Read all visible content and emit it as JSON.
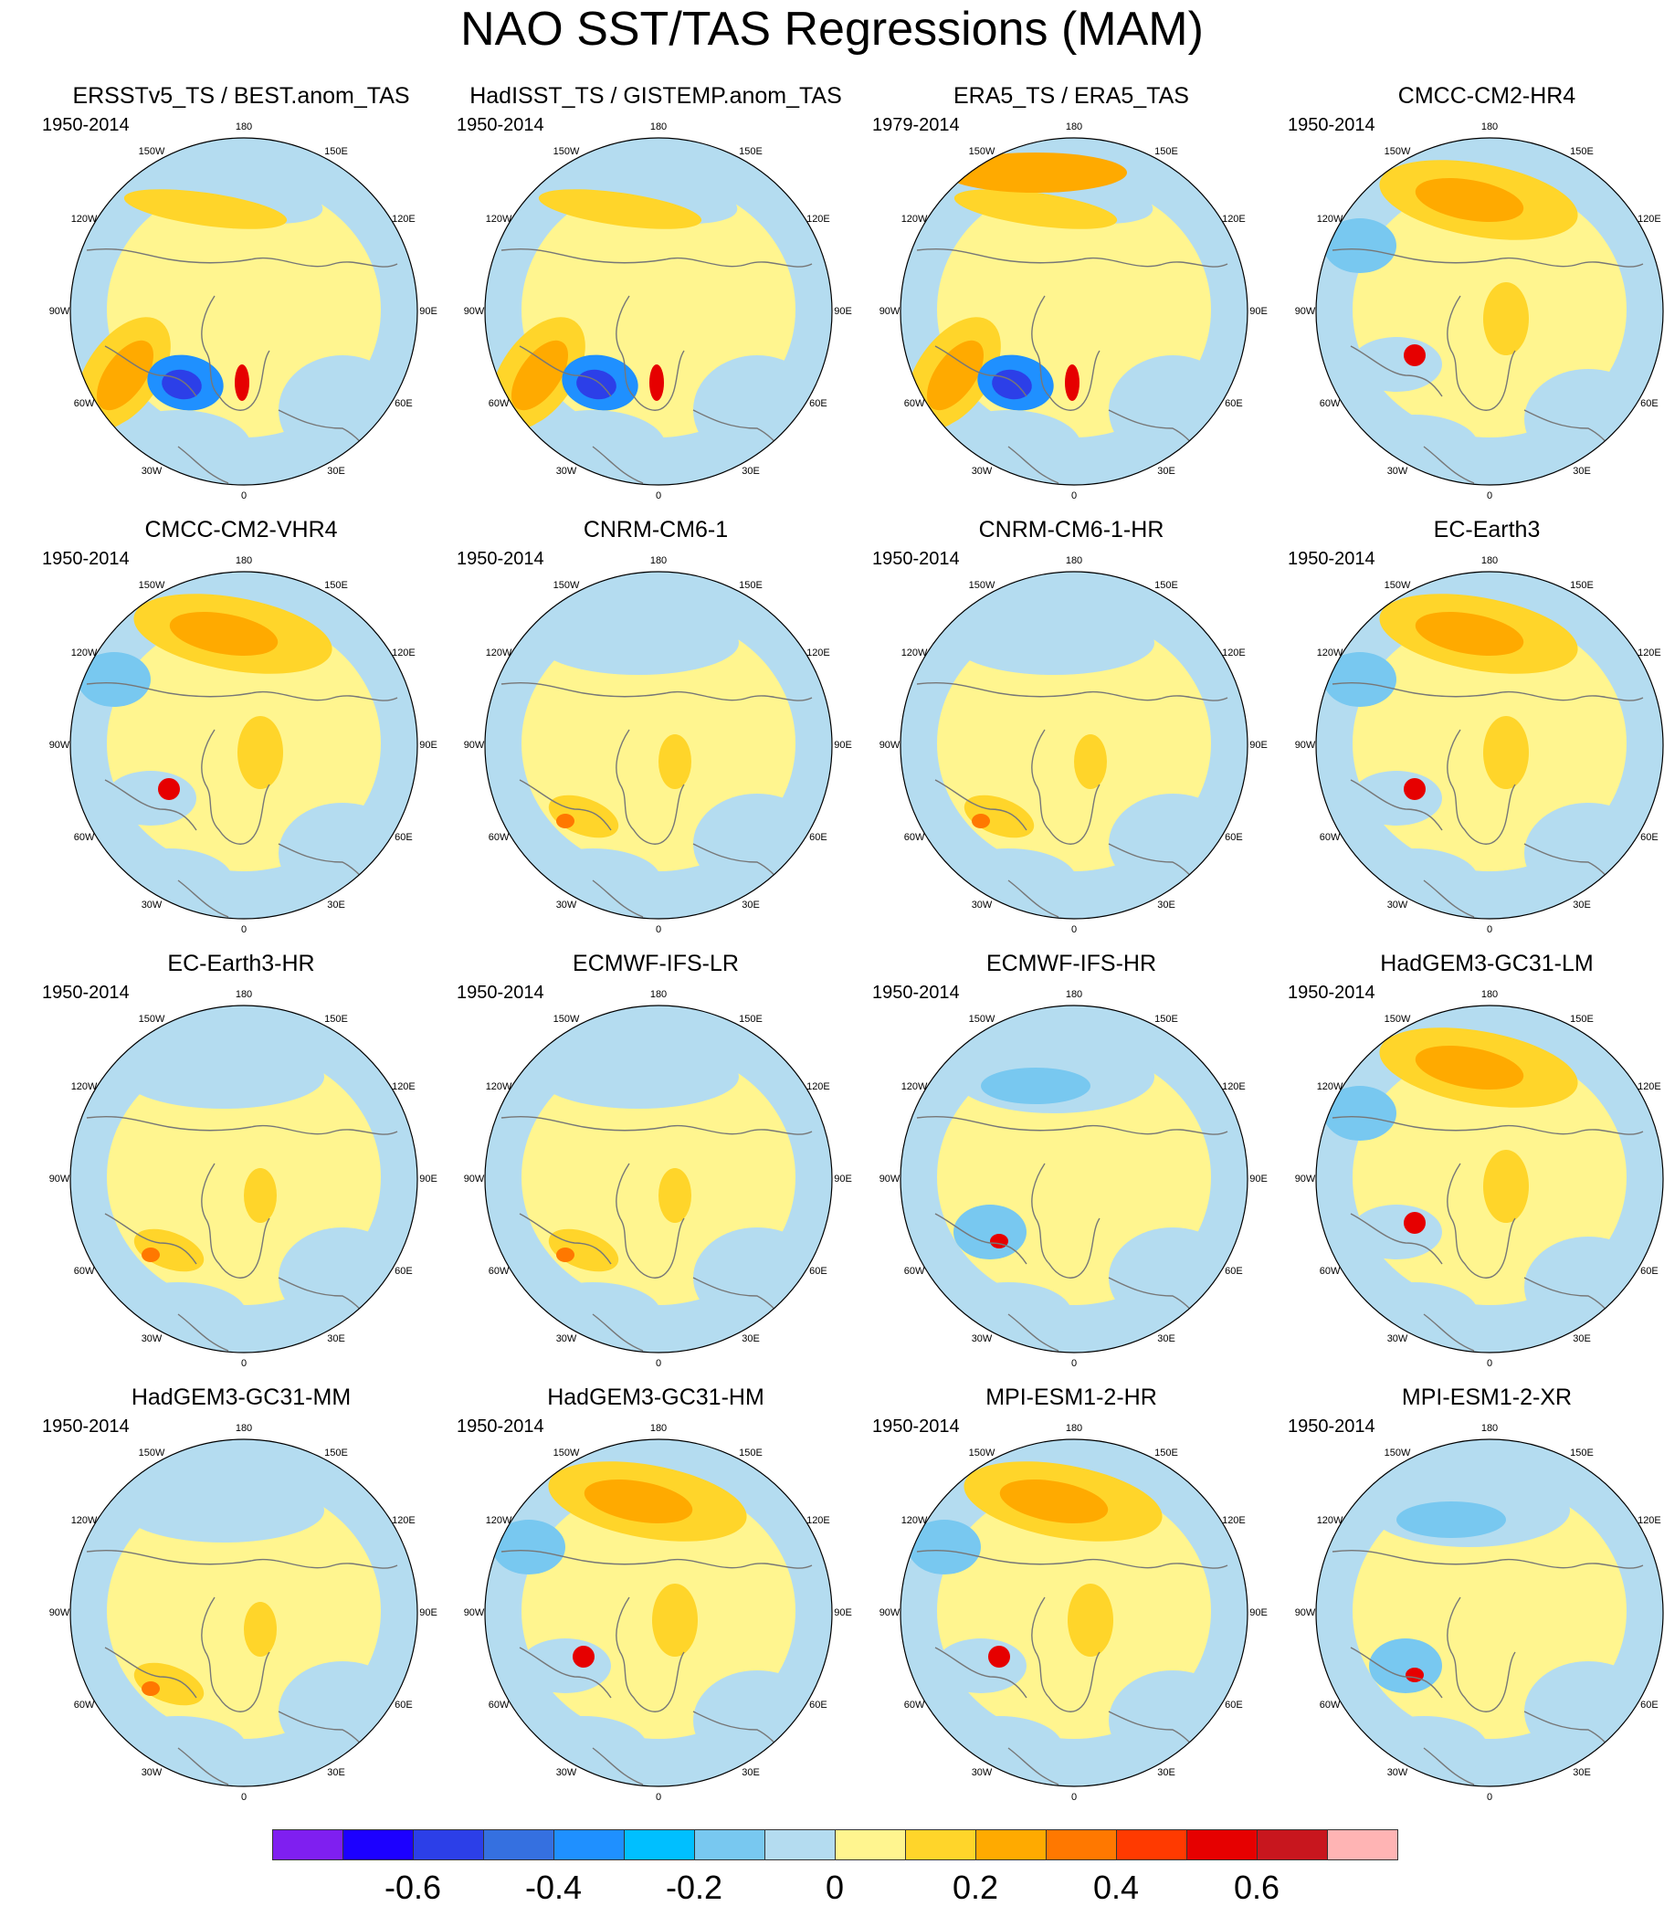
{
  "title": "NAO SST/TAS Regressions (MAM)",
  "panels": [
    {
      "title": "ERSSTv5_TS / BEST.anom_TAS",
      "period": "1950-2014",
      "theme": "obs1"
    },
    {
      "title": "HadISST_TS / GISTEMP.anom_TAS",
      "period": "1950-2014",
      "theme": "obs2"
    },
    {
      "title": "ERA5_TS / ERA5_TAS",
      "period": "1979-2014",
      "theme": "era5"
    },
    {
      "title": "CMCC-CM2-HR4",
      "period": "1950-2014",
      "theme": "warmpac"
    },
    {
      "title": "CMCC-CM2-VHR4",
      "period": "1950-2014",
      "theme": "warmpac"
    },
    {
      "title": "CNRM-CM6-1",
      "period": "1950-2014",
      "theme": "mild"
    },
    {
      "title": "CNRM-CM6-1-HR",
      "period": "1950-2014",
      "theme": "mild"
    },
    {
      "title": "EC-Earth3",
      "period": "1950-2014",
      "theme": "warmpac"
    },
    {
      "title": "EC-Earth3-HR",
      "period": "1950-2014",
      "theme": "mild"
    },
    {
      "title": "ECMWF-IFS-LR",
      "period": "1950-2014",
      "theme": "mild"
    },
    {
      "title": "ECMWF-IFS-HR",
      "period": "1950-2014",
      "theme": "coolpac"
    },
    {
      "title": "HadGEM3-GC31-LM",
      "period": "1950-2014",
      "theme": "warmpac"
    },
    {
      "title": "HadGEM3-GC31-MM",
      "period": "1950-2014",
      "theme": "mild"
    },
    {
      "title": "HadGEM3-GC31-HM",
      "period": "1950-2014",
      "theme": "warmpac"
    },
    {
      "title": "MPI-ESM1-2-HR",
      "period": "1950-2014",
      "theme": "warmpac"
    },
    {
      "title": "MPI-ESM1-2-XR",
      "period": "1950-2014",
      "theme": "coolpac"
    }
  ],
  "longitude_labels": [
    "180",
    "150E",
    "120E",
    "90E",
    "60E",
    "30E",
    "0",
    "30W",
    "60W",
    "90W",
    "120W",
    "150W"
  ],
  "colorbar": {
    "colors": [
      "#7f1ff0",
      "#1c00ff",
      "#2c3fe8",
      "#3570e0",
      "#1f90ff",
      "#00bfff",
      "#78c8f0",
      "#b4dcf0",
      "#fff58f",
      "#ffd52a",
      "#ffaa00",
      "#ff7800",
      "#ff3a00",
      "#e60000",
      "#c8161e",
      "#ffb4b4"
    ],
    "labels": [
      "-0.6",
      "-0.4",
      "-0.2",
      "0",
      "0.2",
      "0.4",
      "0.6"
    ]
  }
}
